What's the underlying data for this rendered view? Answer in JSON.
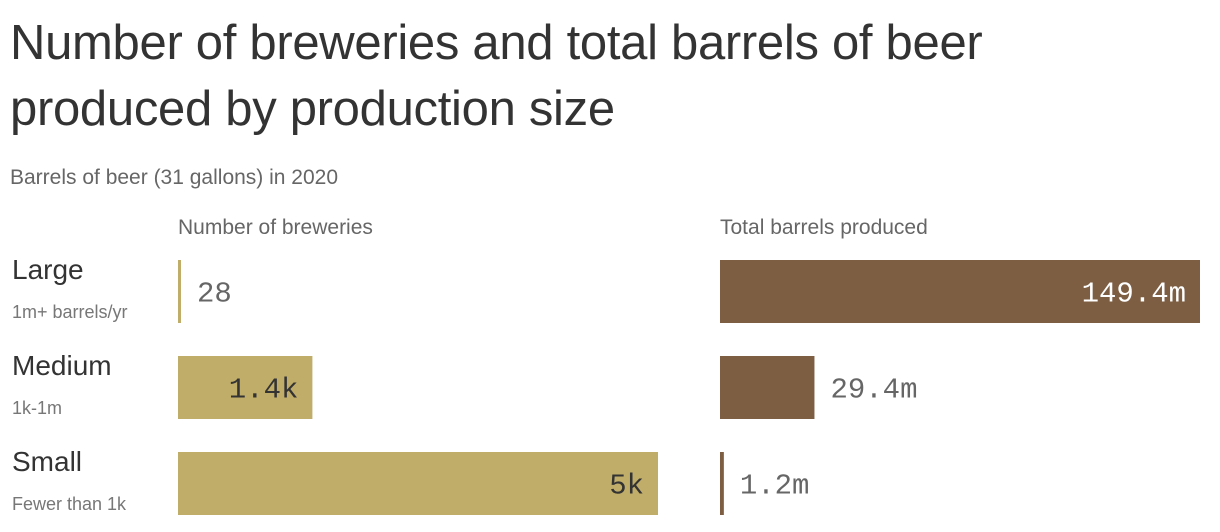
{
  "title": "Number of breweries and total barrels of beer produced by production size",
  "subtitle": "Barrels of beer (31 gallons) in 2020",
  "colors": {
    "breweries": "#c0ad6a",
    "barrels": "#7d5e42",
    "label_dark": "#333333",
    "label_light": "#ffffff",
    "label_outside": "#666666"
  },
  "categories": [
    {
      "name": "Large",
      "sub": "1m+ barrels/yr"
    },
    {
      "name": "Medium",
      "sub": "1k-1m"
    },
    {
      "name": "Small",
      "sub": "Fewer than 1k"
    }
  ],
  "chart_data": [
    {
      "type": "bar",
      "orientation": "horizontal",
      "title": "Number of breweries",
      "categories": [
        "Large",
        "Medium",
        "Small"
      ],
      "values": [
        28,
        1400,
        5000
      ],
      "value_labels": [
        "28",
        "1.4k",
        "5k"
      ],
      "xlim": [
        0,
        5000
      ]
    },
    {
      "type": "bar",
      "orientation": "horizontal",
      "title": "Total barrels produced",
      "categories": [
        "Large",
        "Medium",
        "Small"
      ],
      "values": [
        149.4,
        29.4,
        1.2
      ],
      "value_labels": [
        "149.4m",
        "29.4m",
        "1.2m"
      ],
      "xlim": [
        0,
        149.4
      ]
    }
  ]
}
